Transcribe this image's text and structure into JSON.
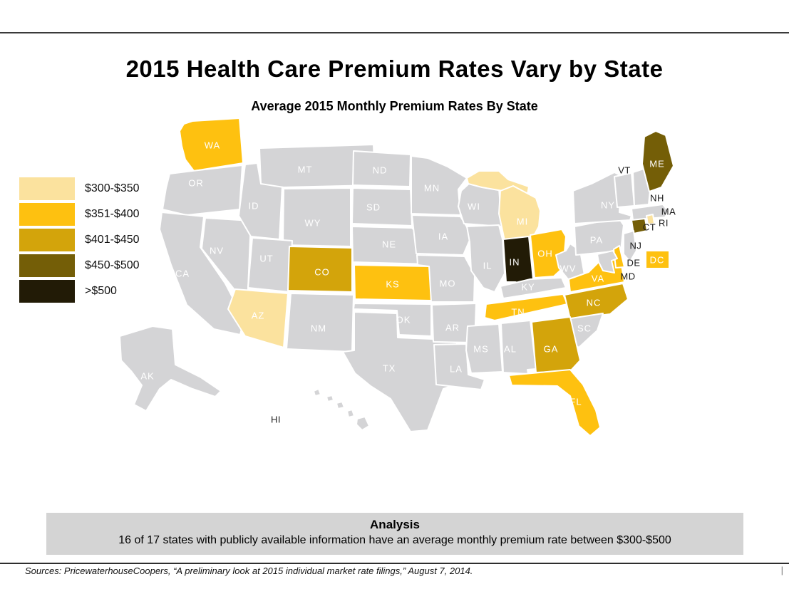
{
  "header": {
    "title": "2015 Health Care Premium Rates Vary by State",
    "subtitle": "Average 2015 Monthly Premium Rates By State"
  },
  "legend": {
    "items": [
      {
        "label": "$300-$350",
        "color": "#FBE29E"
      },
      {
        "label": "$351-$400",
        "color": "#FEC110"
      },
      {
        "label": "$401-$450",
        "color": "#D3A40B"
      },
      {
        "label": "$450-$500",
        "color": "#745E07"
      },
      {
        "label": ">$500",
        "color": "#221B06"
      }
    ]
  },
  "map": {
    "default_state_color": "#D4D4D6",
    "state_label_color_on": "#FFFFFF",
    "state_label_color_off": "#1A1A1A",
    "states": [
      {
        "abbr": "WA",
        "rate_range": "$351-$400"
      },
      {
        "abbr": "OR",
        "rate_range": ""
      },
      {
        "abbr": "CA",
        "rate_range": ""
      },
      {
        "abbr": "NV",
        "rate_range": ""
      },
      {
        "abbr": "ID",
        "rate_range": ""
      },
      {
        "abbr": "MT",
        "rate_range": ""
      },
      {
        "abbr": "WY",
        "rate_range": ""
      },
      {
        "abbr": "UT",
        "rate_range": ""
      },
      {
        "abbr": "AZ",
        "rate_range": "$300-$350"
      },
      {
        "abbr": "NM",
        "rate_range": ""
      },
      {
        "abbr": "CO",
        "rate_range": "$401-$450"
      },
      {
        "abbr": "ND",
        "rate_range": ""
      },
      {
        "abbr": "SD",
        "rate_range": ""
      },
      {
        "abbr": "NE",
        "rate_range": ""
      },
      {
        "abbr": "KS",
        "rate_range": "$351-$400"
      },
      {
        "abbr": "OK",
        "rate_range": ""
      },
      {
        "abbr": "TX",
        "rate_range": ""
      },
      {
        "abbr": "MN",
        "rate_range": ""
      },
      {
        "abbr": "IA",
        "rate_range": ""
      },
      {
        "abbr": "MO",
        "rate_range": ""
      },
      {
        "abbr": "AR",
        "rate_range": ""
      },
      {
        "abbr": "LA",
        "rate_range": ""
      },
      {
        "abbr": "WI",
        "rate_range": ""
      },
      {
        "abbr": "IL",
        "rate_range": ""
      },
      {
        "abbr": "MS",
        "rate_range": ""
      },
      {
        "abbr": "AL",
        "rate_range": ""
      },
      {
        "abbr": "MI",
        "rate_range": "$300-$350"
      },
      {
        "abbr": "IN",
        "rate_range": ">$500"
      },
      {
        "abbr": "OH",
        "rate_range": "$351-$400"
      },
      {
        "abbr": "KY",
        "rate_range": ""
      },
      {
        "abbr": "TN",
        "rate_range": "$351-$400"
      },
      {
        "abbr": "WV",
        "rate_range": ""
      },
      {
        "abbr": "PA",
        "rate_range": ""
      },
      {
        "abbr": "NY",
        "rate_range": ""
      },
      {
        "abbr": "VA",
        "rate_range": "$351-$400"
      },
      {
        "abbr": "NC",
        "rate_range": "$401-$450"
      },
      {
        "abbr": "SC",
        "rate_range": ""
      },
      {
        "abbr": "GA",
        "rate_range": "$401-$450"
      },
      {
        "abbr": "FL",
        "rate_range": "$351-$400"
      },
      {
        "abbr": "VT",
        "rate_range": ""
      },
      {
        "abbr": "NH",
        "rate_range": ""
      },
      {
        "abbr": "MA",
        "rate_range": ""
      },
      {
        "abbr": "RI",
        "rate_range": "$300-$350"
      },
      {
        "abbr": "CT",
        "rate_range": "$450-$500"
      },
      {
        "abbr": "NJ",
        "rate_range": ""
      },
      {
        "abbr": "DE",
        "rate_range": "$351-$400"
      },
      {
        "abbr": "MD",
        "rate_range": ""
      },
      {
        "abbr": "ME",
        "rate_range": "$450-$500"
      },
      {
        "abbr": "AK",
        "rate_range": ""
      },
      {
        "abbr": "HI",
        "rate_range": ""
      },
      {
        "abbr": "DC",
        "rate_range": "$351-$400"
      }
    ]
  },
  "analysis": {
    "heading": "Analysis",
    "text": "16 of 17 states with publicly available information have an average monthly premium rate between $300-$500"
  },
  "footer": {
    "sources": "Sources: PricewaterhouseCoopers, “A preliminary look at 2015 individual market rate filings,” August 7, 2014.",
    "page_marker": "|"
  },
  "chart_data": {
    "type": "choropleth",
    "title": "2015 Health Care Premium Rates Vary by State",
    "subtitle": "Average 2015 Monthly Premium Rates By State",
    "legend_position": "left",
    "legend_categories": [
      "$300-$350",
      "$351-$400",
      "$401-$450",
      "$450-$500",
      ">$500"
    ],
    "category_colors": {
      "$300-$350": "#FBE29E",
      "$351-$400": "#FEC110",
      "$401-$450": "#D3A40B",
      "$450-$500": "#745E07",
      ">$500": "#221B06",
      "no_data": "#D4D4D6"
    },
    "state_categories": {
      "AZ": "$300-$350",
      "MI": "$300-$350",
      "RI": "$300-$350",
      "WA": "$351-$400",
      "KS": "$351-$400",
      "OH": "$351-$400",
      "TN": "$351-$400",
      "VA": "$351-$400",
      "FL": "$351-$400",
      "DE": "$351-$400",
      "DC": "$351-$400",
      "CO": "$401-$450",
      "NC": "$401-$450",
      "GA": "$401-$450",
      "ME": "$450-$500",
      "CT": "$450-$500",
      "IN": ">$500"
    },
    "annotation": "16 of 17 states with publicly available information have an average monthly premium rate between $300-$500"
  }
}
